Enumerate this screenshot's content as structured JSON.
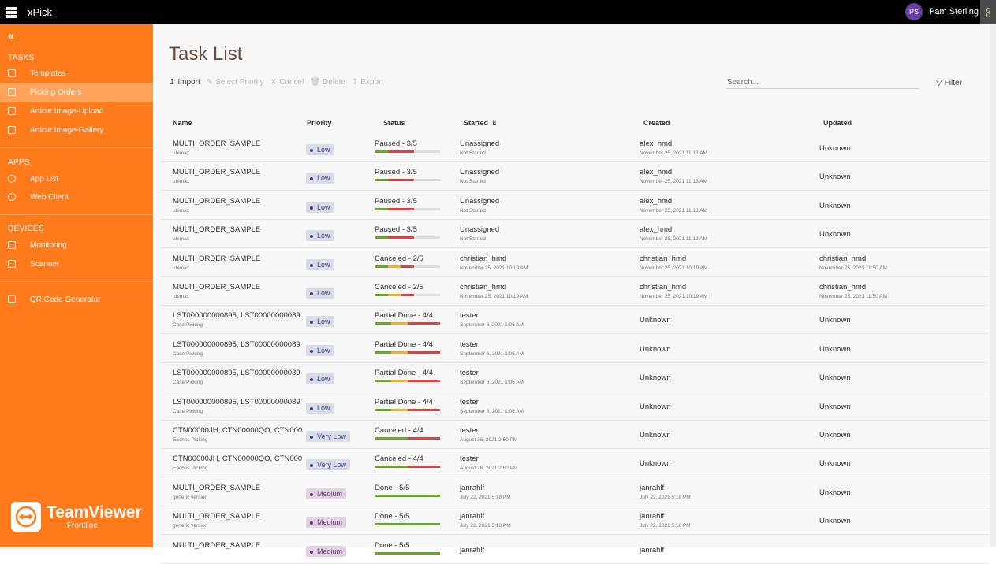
{
  "header": {
    "app_name": "xPick",
    "avatar_initials": "PS",
    "user_name": "Pam Sterling"
  },
  "sidebar": {
    "sections": [
      {
        "label": "TASKS",
        "items": [
          {
            "label": "Templates",
            "icon": "template-icon",
            "active": false
          },
          {
            "label": "Picking Orders",
            "icon": "list-icon",
            "active": true
          },
          {
            "label": "Article Image-Upload",
            "icon": "upload-icon",
            "active": false
          },
          {
            "label": "Article Image-Gallery",
            "icon": "gallery-icon",
            "active": false
          }
        ]
      },
      {
        "label": "APPS",
        "items": [
          {
            "label": "App List",
            "icon": "cube-icon",
            "active": false
          },
          {
            "label": "Web Client",
            "icon": "play-icon",
            "active": false
          }
        ]
      },
      {
        "label": "DEVICES",
        "items": [
          {
            "label": "Monitoring",
            "icon": "grid-icon",
            "active": false
          },
          {
            "label": "Scanner",
            "icon": "scanner-icon",
            "active": false
          }
        ]
      },
      {
        "label": "",
        "items": [
          {
            "label": "QR Code Generator",
            "icon": "qr-icon",
            "active": false
          }
        ]
      }
    ],
    "brand": {
      "name": "TeamViewer",
      "subtitle": "Frontline"
    }
  },
  "main": {
    "title": "Task List",
    "toolbar": {
      "import": "Import",
      "select_priority": "Select Priority",
      "cancel": "Cancel",
      "delete": "Delete",
      "export": "Export"
    },
    "search_placeholder": "Search...",
    "filter": "Filter",
    "columns": [
      "Name",
      "Priority",
      "Status",
      "Started",
      "Created",
      "Updated"
    ],
    "rows": [
      {
        "name": "MULTI_ORDER_SAMPLE",
        "sub": "ubimax",
        "priority": "Low",
        "status": "Paused - 3/5",
        "progress": [
          [
            "#6aa62a",
            0.2
          ],
          [
            "#e04040",
            0.4
          ],
          [
            "#dddddd",
            0.4
          ]
        ],
        "started": "Unassigned",
        "started_sub": "Not Started",
        "created": "alex_hmd",
        "created_sub": "November 25, 2021 11:13 AM",
        "updated": "Unknown",
        "updated_sub": ""
      },
      {
        "name": "MULTI_ORDER_SAMPLE",
        "sub": "ubimax",
        "priority": "Low",
        "status": "Paused - 3/5",
        "progress": [
          [
            "#6aa62a",
            0.2
          ],
          [
            "#e04040",
            0.4
          ],
          [
            "#dddddd",
            0.4
          ]
        ],
        "started": "Unassigned",
        "started_sub": "Not Started",
        "created": "alex_hmd",
        "created_sub": "November 25, 2021 11:13 AM",
        "updated": "Unknown",
        "updated_sub": ""
      },
      {
        "name": "MULTI_ORDER_SAMPLE",
        "sub": "ubimax",
        "priority": "Low",
        "status": "Paused - 3/5",
        "progress": [
          [
            "#6aa62a",
            0.2
          ],
          [
            "#e04040",
            0.4
          ],
          [
            "#dddddd",
            0.4
          ]
        ],
        "started": "Unassigned",
        "started_sub": "Not Started",
        "created": "alex_hmd",
        "created_sub": "November 25, 2021 11:13 AM",
        "updated": "Unknown",
        "updated_sub": ""
      },
      {
        "name": "MULTI_ORDER_SAMPLE",
        "sub": "ubimax",
        "priority": "Low",
        "status": "Paused - 3/5",
        "progress": [
          [
            "#6aa62a",
            0.2
          ],
          [
            "#e04040",
            0.4
          ],
          [
            "#dddddd",
            0.4
          ]
        ],
        "started": "Unassigned",
        "started_sub": "Not Started",
        "created": "alex_hmd",
        "created_sub": "November 25, 2021 11:13 AM",
        "updated": "Unknown",
        "updated_sub": ""
      },
      {
        "name": "MULTI_ORDER_SAMPLE",
        "sub": "ubimax",
        "priority": "Low",
        "status": "Canceled - 2/5",
        "progress": [
          [
            "#6aa62a",
            0.2
          ],
          [
            "#f0b030",
            0.2
          ],
          [
            "#e04040",
            0.2
          ],
          [
            "#dddddd",
            0.4
          ]
        ],
        "started": "christian_hmd",
        "started_sub": "November 25, 2021 10:19 AM",
        "created": "christian_hmd",
        "created_sub": "November 25, 2021 10:19 AM",
        "updated": "christian_hmd",
        "updated_sub": "November 25, 2021 11:50 AM"
      },
      {
        "name": "MULTI_ORDER_SAMPLE",
        "sub": "ubimax",
        "priority": "Low",
        "status": "Canceled - 2/5",
        "progress": [
          [
            "#6aa62a",
            0.2
          ],
          [
            "#f0b030",
            0.2
          ],
          [
            "#e04040",
            0.2
          ],
          [
            "#dddddd",
            0.4
          ]
        ],
        "started": "christian_hmd",
        "started_sub": "November 25, 2021 10:19 AM",
        "created": "christian_hmd",
        "created_sub": "November 25, 2021 10:19 AM",
        "updated": "christian_hmd",
        "updated_sub": "November 25, 2021 11:50 AM"
      },
      {
        "name": "LST000000000895, LST00000000089",
        "sub": "Case Picking",
        "priority": "Low",
        "status": "Partial Done - 4/4",
        "progress": [
          [
            "#6aa62a",
            0.25
          ],
          [
            "#f0b030",
            0.25
          ],
          [
            "#e04040",
            0.5
          ]
        ],
        "started": "tester",
        "started_sub": "September 6, 2021 1:06 AM",
        "created": "Unknown",
        "created_sub": "",
        "updated": "Unknown",
        "updated_sub": ""
      },
      {
        "name": "LST000000000895, LST00000000089",
        "sub": "Case Picking",
        "priority": "Low",
        "status": "Partial Done - 4/4",
        "progress": [
          [
            "#6aa62a",
            0.25
          ],
          [
            "#f0b030",
            0.25
          ],
          [
            "#e04040",
            0.5
          ]
        ],
        "started": "tester",
        "started_sub": "September 6, 2021 1:06 AM",
        "created": "Unknown",
        "created_sub": "",
        "updated": "Unknown",
        "updated_sub": ""
      },
      {
        "name": "LST000000000895, LST00000000089",
        "sub": "Case Picking",
        "priority": "Low",
        "status": "Partial Done - 4/4",
        "progress": [
          [
            "#6aa62a",
            0.25
          ],
          [
            "#f0b030",
            0.25
          ],
          [
            "#e04040",
            0.5
          ]
        ],
        "started": "tester",
        "started_sub": "September 6, 2021 1:06 AM",
        "created": "Unknown",
        "created_sub": "",
        "updated": "Unknown",
        "updated_sub": ""
      },
      {
        "name": "LST000000000895, LST00000000089",
        "sub": "Case Picking",
        "priority": "Low",
        "status": "Partial Done - 4/4",
        "progress": [
          [
            "#6aa62a",
            0.25
          ],
          [
            "#f0b030",
            0.25
          ],
          [
            "#e04040",
            0.5
          ]
        ],
        "started": "tester",
        "started_sub": "September 6, 2021 1:06 AM",
        "created": "Unknown",
        "created_sub": "",
        "updated": "Unknown",
        "updated_sub": ""
      },
      {
        "name": "CTN00000JH, CTN00000QO, CTN000",
        "sub": "Eaches Picking",
        "priority": "Very Low",
        "status": "Canceled - 4/4",
        "progress": [
          [
            "#6aa62a",
            0.5
          ],
          [
            "#e04040",
            0.5
          ]
        ],
        "started": "tester",
        "started_sub": "August 26, 2021 2:50 PM",
        "created": "Unknown",
        "created_sub": "",
        "updated": "Unknown",
        "updated_sub": ""
      },
      {
        "name": "CTN00000JH, CTN00000QO, CTN000",
        "sub": "Eaches Picking",
        "priority": "Very Low",
        "status": "Canceled - 4/4",
        "progress": [
          [
            "#6aa62a",
            0.5
          ],
          [
            "#e04040",
            0.5
          ]
        ],
        "started": "tester",
        "started_sub": "August 26, 2021 2:50 PM",
        "created": "Unknown",
        "created_sub": "",
        "updated": "Unknown",
        "updated_sub": ""
      },
      {
        "name": "MULTI_ORDER_SAMPLE",
        "sub": "generic version",
        "priority": "Medium",
        "status": "Done - 5/5",
        "progress": [
          [
            "#6aa62a",
            1.0
          ]
        ],
        "started": "janrahlf",
        "started_sub": "July 22, 2021 5:18 PM",
        "created": "janrahlf",
        "created_sub": "July 22, 2021 5:18 PM",
        "updated": "Unknown",
        "updated_sub": ""
      },
      {
        "name": "MULTI_ORDER_SAMPLE",
        "sub": "generic version",
        "priority": "Medium",
        "status": "Done - 5/5",
        "progress": [
          [
            "#6aa62a",
            1.0
          ]
        ],
        "started": "janrahlf",
        "started_sub": "July 22, 2021 5:18 PM",
        "created": "janrahlf",
        "created_sub": "July 22, 2021 5:18 PM",
        "updated": "Unknown",
        "updated_sub": ""
      },
      {
        "name": "MULTI_ORDER_SAMPLE",
        "sub": "",
        "priority": "Medium",
        "status": "Done - 5/5",
        "progress": [
          [
            "#6aa62a",
            1.0
          ]
        ],
        "started": "janrahlf",
        "started_sub": "",
        "created": "janrahlf",
        "created_sub": "",
        "updated": "",
        "updated_sub": ""
      }
    ]
  },
  "colors": {
    "sidebar": "#ff7a1a",
    "active_item": "#ffa25a",
    "topbar": "#000000",
    "title": "#6a4a3a"
  }
}
